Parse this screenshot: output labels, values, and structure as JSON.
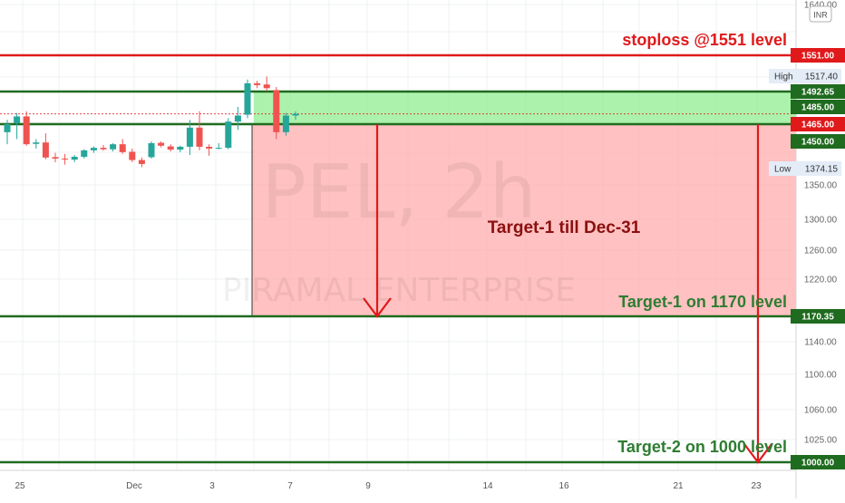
{
  "chart_data": {
    "type": "candlestick",
    "symbol_watermark": "PEL, 2h",
    "name_watermark": "PIRAMAL ENTERPRISE",
    "currency": "INR",
    "y_ticks": [
      "1640.00",
      "1350.00",
      "1300.00",
      "1260.00",
      "1220.00",
      "1140.00",
      "1100.00",
      "1060.00",
      "1025.00"
    ],
    "x_ticks": [
      "25",
      "Dec",
      "3",
      "7",
      "9",
      "14",
      "16",
      "21",
      "23"
    ],
    "price_tags": [
      {
        "label": "1551.00",
        "bg": "#e0191b",
        "fg": "#ffffff"
      },
      {
        "label": "1492.65",
        "bg": "#1f6b1f",
        "fg": "#ffffff"
      },
      {
        "label": "1485.00",
        "bg": "#1f6b1f",
        "fg": "#ffffff"
      },
      {
        "label": "1465.00",
        "bg": "#e0191b",
        "fg": "#ffffff"
      },
      {
        "label": "1450.00",
        "bg": "#1f6b1f",
        "fg": "#ffffff"
      },
      {
        "label": "1170.35",
        "bg": "#1f6b1f",
        "fg": "#ffffff"
      },
      {
        "label": "1000.00",
        "bg": "#1f6b1f",
        "fg": "#ffffff"
      }
    ],
    "high_low": [
      {
        "key": "High",
        "value": "1517.40"
      },
      {
        "key": "Low",
        "value": "1374.15"
      }
    ],
    "annotations": {
      "stoploss": "stoploss @1551 level",
      "target_box": "Target-1 till Dec-31",
      "target1": "Target-1 on 1170 level",
      "target2": "Target-2 on 1000 level"
    },
    "levels": {
      "stoploss": 1551,
      "resistance_top": 1492.65,
      "support": 1465,
      "target1": 1170.35,
      "target2": 1000
    },
    "candles": [
      {
        "o": 1458,
        "h": 1470,
        "l": 1442,
        "c": 1465
      },
      {
        "o": 1466,
        "h": 1478,
        "l": 1452,
        "c": 1474
      },
      {
        "o": 1474,
        "h": 1480,
        "l": 1438,
        "c": 1442
      },
      {
        "o": 1443,
        "h": 1452,
        "l": 1430,
        "c": 1447
      },
      {
        "o": 1447,
        "h": 1457,
        "l": 1400,
        "c": 1405
      },
      {
        "o": 1406,
        "h": 1418,
        "l": 1392,
        "c": 1402
      },
      {
        "o": 1402,
        "h": 1415,
        "l": 1385,
        "c": 1400
      },
      {
        "o": 1399,
        "h": 1412,
        "l": 1392,
        "c": 1407
      },
      {
        "o": 1407,
        "h": 1428,
        "l": 1402,
        "c": 1425
      },
      {
        "o": 1425,
        "h": 1436,
        "l": 1418,
        "c": 1432
      },
      {
        "o": 1432,
        "h": 1440,
        "l": 1424,
        "c": 1428
      },
      {
        "o": 1428,
        "h": 1445,
        "l": 1422,
        "c": 1442
      },
      {
        "o": 1442,
        "h": 1452,
        "l": 1415,
        "c": 1420
      },
      {
        "o": 1421,
        "h": 1430,
        "l": 1392,
        "c": 1398
      },
      {
        "o": 1398,
        "h": 1405,
        "l": 1378,
        "c": 1387
      },
      {
        "o": 1406,
        "h": 1450,
        "l": 1402,
        "c": 1445
      },
      {
        "o": 1446,
        "h": 1450,
        "l": 1433,
        "c": 1438
      },
      {
        "o": 1436,
        "h": 1442,
        "l": 1422,
        "c": 1427
      },
      {
        "o": 1427,
        "h": 1438,
        "l": 1420,
        "c": 1435
      },
      {
        "o": 1435,
        "h": 1470,
        "l": 1412,
        "c": 1462
      },
      {
        "o": 1462,
        "h": 1480,
        "l": 1425,
        "c": 1435
      },
      {
        "o": 1435,
        "h": 1442,
        "l": 1410,
        "c": 1430
      },
      {
        "o": 1430,
        "h": 1445,
        "l": 1428,
        "c": 1432
      },
      {
        "o": 1432,
        "h": 1472,
        "l": 1428,
        "c": 1468
      },
      {
        "o": 1468,
        "h": 1485,
        "l": 1460,
        "c": 1475
      },
      {
        "o": 1476,
        "h": 1512,
        "l": 1472,
        "c": 1506
      },
      {
        "o": 1506,
        "h": 1510,
        "l": 1498,
        "c": 1503
      },
      {
        "o": 1504,
        "h": 1517,
        "l": 1493,
        "c": 1498
      },
      {
        "o": 1495,
        "h": 1500,
        "l": 1452,
        "c": 1458
      },
      {
        "o": 1458,
        "h": 1478,
        "l": 1455,
        "c": 1475
      },
      {
        "o": 1475,
        "h": 1480,
        "l": 1470,
        "c": 1477
      }
    ]
  }
}
